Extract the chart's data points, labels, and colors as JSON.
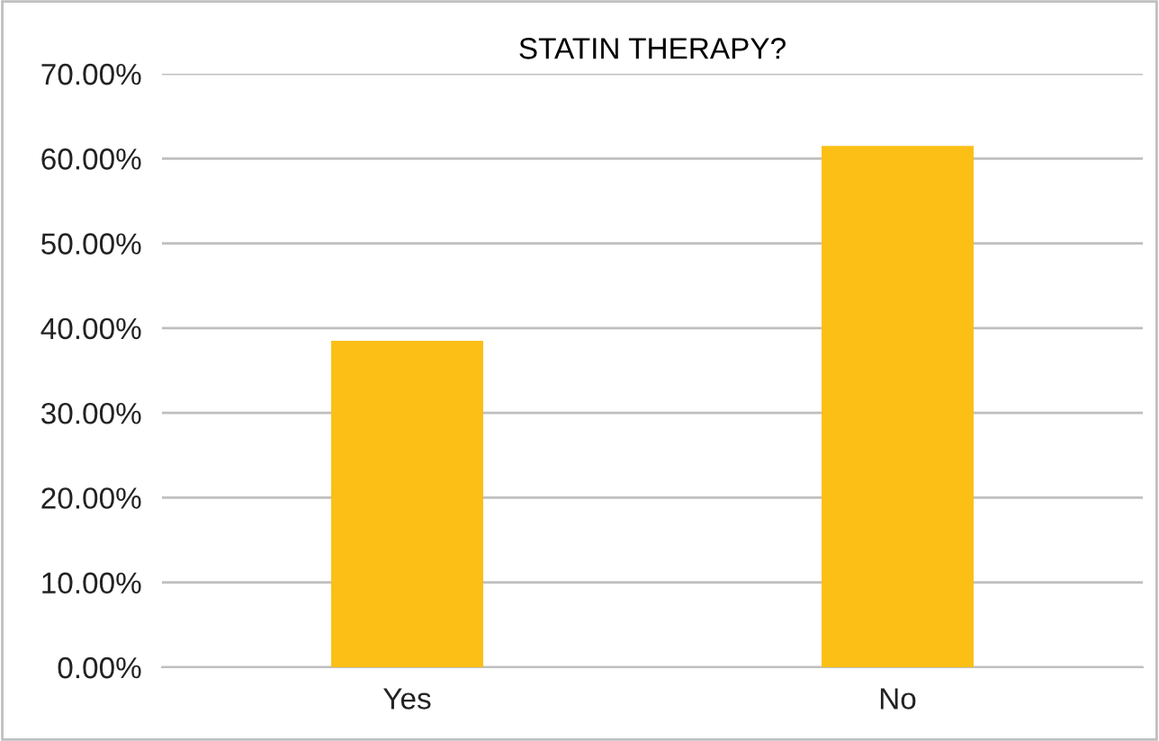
{
  "chart_data": {
    "type": "bar",
    "title": "STATIN THERAPY?",
    "categories": [
      "Yes",
      "No"
    ],
    "values": [
      38.5,
      61.5
    ],
    "color": "#fbbf16",
    "ylim": [
      0,
      70
    ],
    "yticks": [
      {
        "value": 0,
        "label": "0.00%"
      },
      {
        "value": 10,
        "label": "10.00%"
      },
      {
        "value": 20,
        "label": "20.00%"
      },
      {
        "value": 30,
        "label": "30.00%"
      },
      {
        "value": 40,
        "label": "40.00%"
      },
      {
        "value": 50,
        "label": "50.00%"
      },
      {
        "value": 60,
        "label": "60.00%"
      },
      {
        "value": 70,
        "label": "70.00%"
      }
    ],
    "grid": "y",
    "legend": false
  }
}
